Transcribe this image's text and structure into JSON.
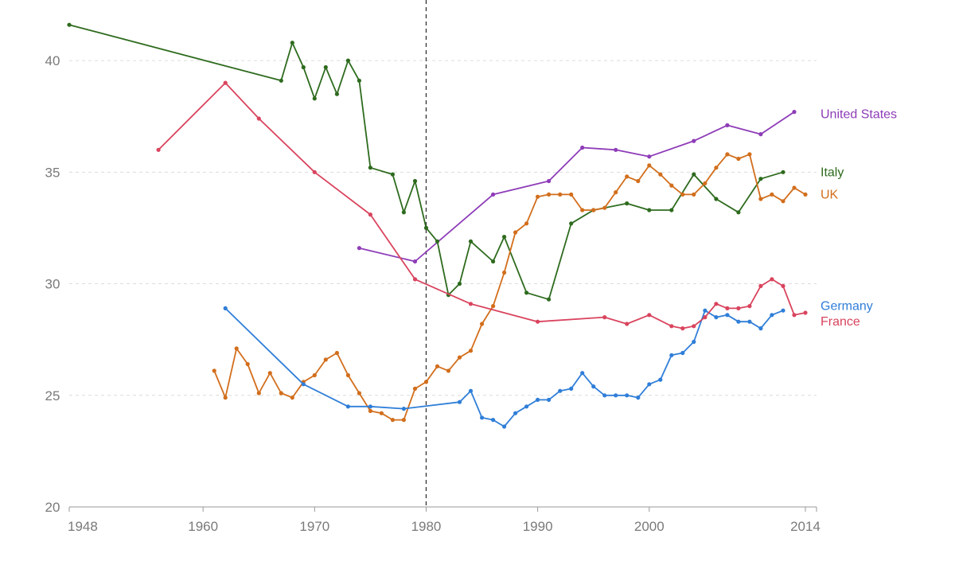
{
  "chart_data": {
    "type": "line",
    "title": "",
    "xlabel": "",
    "ylabel": "",
    "xlim": [
      1948,
      2015
    ],
    "ylim": [
      20,
      42
    ],
    "grid": true,
    "legend": "labels at right end of each line",
    "x_ticks": [
      {
        "value": 1948,
        "label": "1948"
      },
      {
        "value": 1960,
        "label": "1960"
      },
      {
        "value": 1970,
        "label": "1970"
      },
      {
        "value": 1980,
        "label": "1980"
      },
      {
        "value": 1990,
        "label": "1990"
      },
      {
        "value": 2000,
        "label": "2000"
      },
      {
        "value": 2014,
        "label": "2014"
      }
    ],
    "y_ticks": [
      {
        "value": 20,
        "label": "20"
      },
      {
        "value": 25,
        "label": "25"
      },
      {
        "value": 30,
        "label": "30"
      },
      {
        "value": 35,
        "label": "35"
      },
      {
        "value": 40,
        "label": "40"
      }
    ],
    "reference_line": {
      "x": 1980,
      "style": "dashed"
    },
    "series": [
      {
        "name": "United States",
        "color": "#8e3cb8",
        "label_y": 37.6,
        "points": [
          [
            1974,
            31.6
          ],
          [
            1979,
            31.0
          ],
          [
            1986,
            34.0
          ],
          [
            1991,
            34.6
          ],
          [
            1994,
            36.1
          ],
          [
            1997,
            36.0
          ],
          [
            2000,
            35.7
          ],
          [
            2004,
            36.4
          ],
          [
            2007,
            37.1
          ],
          [
            2010,
            36.7
          ],
          [
            2013,
            37.7
          ]
        ]
      },
      {
        "name": "Italy",
        "color": "#2e6b1e",
        "label_y": 35.0,
        "points": [
          [
            1948,
            41.6
          ],
          [
            1967,
            39.1
          ],
          [
            1968,
            40.8
          ],
          [
            1969,
            39.7
          ],
          [
            1970,
            38.3
          ],
          [
            1971,
            39.7
          ],
          [
            1972,
            38.5
          ],
          [
            1973,
            40.0
          ],
          [
            1974,
            39.1
          ],
          [
            1975,
            35.2
          ],
          [
            1977,
            34.9
          ],
          [
            1978,
            33.2
          ],
          [
            1979,
            34.6
          ],
          [
            1980,
            32.5
          ],
          [
            1981,
            31.9
          ],
          [
            1982,
            29.5
          ],
          [
            1983,
            30.0
          ],
          [
            1984,
            31.9
          ],
          [
            1986,
            31.0
          ],
          [
            1987,
            32.1
          ],
          [
            1989,
            29.6
          ],
          [
            1991,
            29.3
          ],
          [
            1993,
            32.7
          ],
          [
            1995,
            33.3
          ],
          [
            1998,
            33.6
          ],
          [
            2000,
            33.3
          ],
          [
            2002,
            33.3
          ],
          [
            2004,
            34.9
          ],
          [
            2006,
            33.8
          ],
          [
            2008,
            33.2
          ],
          [
            2010,
            34.7
          ],
          [
            2012,
            35.0
          ]
        ]
      },
      {
        "name": "UK",
        "color": "#d26e1c",
        "label_y": 34.0,
        "points": [
          [
            1961,
            26.1
          ],
          [
            1962,
            24.9
          ],
          [
            1963,
            27.1
          ],
          [
            1964,
            26.4
          ],
          [
            1965,
            25.1
          ],
          [
            1966,
            26.0
          ],
          [
            1967,
            25.1
          ],
          [
            1968,
            24.9
          ],
          [
            1969,
            25.6
          ],
          [
            1970,
            25.9
          ],
          [
            1971,
            26.6
          ],
          [
            1972,
            26.9
          ],
          [
            1973,
            25.9
          ],
          [
            1974,
            25.1
          ],
          [
            1975,
            24.3
          ],
          [
            1976,
            24.2
          ],
          [
            1977,
            23.9
          ],
          [
            1978,
            23.9
          ],
          [
            1979,
            25.3
          ],
          [
            1980,
            25.6
          ],
          [
            1981,
            26.3
          ],
          [
            1982,
            26.1
          ],
          [
            1983,
            26.7
          ],
          [
            1984,
            27.0
          ],
          [
            1985,
            28.2
          ],
          [
            1986,
            29.0
          ],
          [
            1987,
            30.5
          ],
          [
            1988,
            32.3
          ],
          [
            1989,
            32.7
          ],
          [
            1990,
            33.9
          ],
          [
            1991,
            34.0
          ],
          [
            1992,
            34.0
          ],
          [
            1993,
            34.0
          ],
          [
            1994,
            33.3
          ],
          [
            1995,
            33.3
          ],
          [
            1996,
            33.4
          ],
          [
            1997,
            34.1
          ],
          [
            1998,
            34.8
          ],
          [
            1999,
            34.6
          ],
          [
            2000,
            35.3
          ],
          [
            2001,
            34.9
          ],
          [
            2002,
            34.4
          ],
          [
            2003,
            34.0
          ],
          [
            2004,
            34.0
          ],
          [
            2005,
            34.5
          ],
          [
            2006,
            35.2
          ],
          [
            2007,
            35.8
          ],
          [
            2008,
            35.6
          ],
          [
            2009,
            35.8
          ],
          [
            2010,
            33.8
          ],
          [
            2011,
            34.0
          ],
          [
            2012,
            33.7
          ],
          [
            2013,
            34.3
          ],
          [
            2014,
            34.0
          ]
        ]
      },
      {
        "name": "Germany",
        "color": "#2f7ed8",
        "label_y": 29.0,
        "points": [
          [
            1962,
            28.9
          ],
          [
            1969,
            25.5
          ],
          [
            1973,
            24.5
          ],
          [
            1975,
            24.5
          ],
          [
            1978,
            24.4
          ],
          [
            1983,
            24.7
          ],
          [
            1984,
            25.2
          ],
          [
            1985,
            24.0
          ],
          [
            1986,
            23.9
          ],
          [
            1987,
            23.6
          ],
          [
            1988,
            24.2
          ],
          [
            1989,
            24.5
          ],
          [
            1990,
            24.8
          ],
          [
            1991,
            24.8
          ],
          [
            1992,
            25.2
          ],
          [
            1993,
            25.3
          ],
          [
            1994,
            26.0
          ],
          [
            1995,
            25.4
          ],
          [
            1996,
            25.0
          ],
          [
            1997,
            25.0
          ],
          [
            1998,
            25.0
          ],
          [
            1999,
            24.9
          ],
          [
            2000,
            25.5
          ],
          [
            2001,
            25.7
          ],
          [
            2002,
            26.8
          ],
          [
            2003,
            26.9
          ],
          [
            2004,
            27.4
          ],
          [
            2005,
            28.8
          ],
          [
            2006,
            28.5
          ],
          [
            2007,
            28.6
          ],
          [
            2008,
            28.3
          ],
          [
            2009,
            28.3
          ],
          [
            2010,
            28.0
          ],
          [
            2011,
            28.6
          ],
          [
            2012,
            28.8
          ]
        ]
      },
      {
        "name": "France",
        "color": "#d9445e",
        "label_y": 28.3,
        "points": [
          [
            1956,
            36.0
          ],
          [
            1962,
            39.0
          ],
          [
            1965,
            37.4
          ],
          [
            1970,
            35.0
          ],
          [
            1975,
            33.1
          ],
          [
            1979,
            30.2
          ],
          [
            1984,
            29.1
          ],
          [
            1990,
            28.3
          ],
          [
            1996,
            28.5
          ],
          [
            1998,
            28.2
          ],
          [
            2000,
            28.6
          ],
          [
            2002,
            28.1
          ],
          [
            2003,
            28.0
          ],
          [
            2004,
            28.1
          ],
          [
            2005,
            28.5
          ],
          [
            2006,
            29.1
          ],
          [
            2007,
            28.9
          ],
          [
            2008,
            28.9
          ],
          [
            2009,
            29.0
          ],
          [
            2010,
            29.9
          ],
          [
            2011,
            30.2
          ],
          [
            2012,
            29.9
          ],
          [
            2013,
            28.6
          ],
          [
            2014,
            28.7
          ]
        ]
      }
    ]
  }
}
